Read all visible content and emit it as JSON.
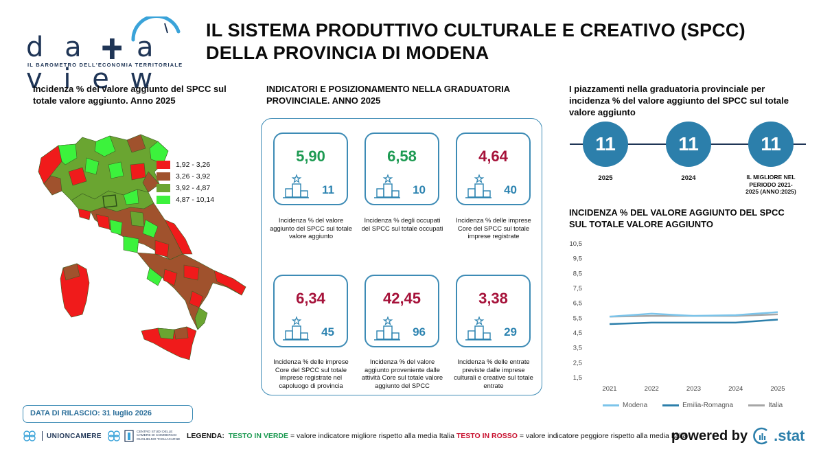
{
  "header": {
    "logo_word": "datavie w",
    "logo_tagline": "IL BAROMETRO DELL'ECONOMIA TERRITORIALE",
    "title_line1": "IL SISTEMA PRODUTTIVO CULTURALE E CREATIVO (SPCC)",
    "title_line2": "DELLA PROVINCIA DI MODENA"
  },
  "map_section": {
    "title_line1": "Incidenza % del valore aggiunto del SPCC sul",
    "title_line2": "totale valore aggiunto. Anno 2025",
    "legend": [
      {
        "label": "1,92 - 3,26",
        "color": "#f01b1b"
      },
      {
        "label": "3,26 - 3,92",
        "color": "#a0522d"
      },
      {
        "label": "3,92 - 4,87",
        "color": "#6aa531"
      },
      {
        "label": "4,87 - 10,14",
        "color": "#3cf23c"
      }
    ]
  },
  "indicators": {
    "title_line1": "INDICATORI E POSIZIONAMENTO NELLA GRADUATORIA",
    "title_line2": "PROVINCIALE. ANNO 2025",
    "cards": [
      {
        "value": "5,90",
        "rank": "11",
        "status": "green",
        "desc": "Incidenza % del valore aggiunto del SPCC sul totale valore aggiunto"
      },
      {
        "value": "6,58",
        "rank": "10",
        "status": "green",
        "desc": "Incidenza % degli occupati del SPCC sul totale occupati"
      },
      {
        "value": "4,64",
        "rank": "40",
        "status": "red",
        "desc": "Incidenza % delle imprese Core del SPCC sul totale imprese registrate"
      },
      {
        "value": "6,34",
        "rank": "45",
        "status": "red",
        "desc": "Incidenza % delle imprese Core del SPCC sul totale imprese registrate nel capoluogo di provincia"
      },
      {
        "value": "42,45",
        "rank": "96",
        "status": "red",
        "desc": "Incidenza % del valore aggiunto proveniente dalle attività Core sul totale valore aggiunto del SPCC"
      },
      {
        "value": "3,38",
        "rank": "29",
        "status": "red",
        "desc": "Incidenza % delle entrate previste dalle imprese culturali e creative sul totale entrate"
      }
    ]
  },
  "placements": {
    "title_line1": "I piazzamenti nella graduatoria provinciale per",
    "title_line2": "incidenza % del valore aggiunto del SPCC sul totale",
    "title_line3": "valore aggiunto",
    "items": [
      {
        "rank": "11",
        "label": "2025"
      },
      {
        "rank": "11",
        "label": "2024"
      },
      {
        "rank": "11",
        "label": "IL MIGLIORE NEL PERIODO 2021-2025 (ANNO:2025)"
      }
    ]
  },
  "chart_data": {
    "type": "line",
    "title": "INCIDENZA % DEL VALORE AGGIUNTO DEL SPCC SUL TOTALE VALORE AGGIUNTO",
    "x": [
      "2021",
      "2022",
      "2023",
      "2024",
      "2025"
    ],
    "ylim": [
      1.5,
      10.5
    ],
    "yticks": [
      "10,5",
      "9,5",
      "8,5",
      "7,5",
      "6,5",
      "5,5",
      "4,5",
      "3,5",
      "2,5",
      "1,5"
    ],
    "yticks_values": [
      10.5,
      9.5,
      8.5,
      7.5,
      6.5,
      5.5,
      4.5,
      3.5,
      2.5,
      1.5
    ],
    "series": [
      {
        "name": "Modena",
        "values": [
          5.6,
          5.8,
          5.65,
          5.7,
          5.9
        ],
        "color": "#7cc4ea"
      },
      {
        "name": "Emilia-Romagna",
        "values": [
          5.1,
          5.2,
          5.2,
          5.2,
          5.4
        ],
        "color": "#2c7fab"
      },
      {
        "name": "Italia",
        "values": [
          5.6,
          5.65,
          5.65,
          5.65,
          5.75
        ],
        "color": "#a6a6a6"
      }
    ],
    "grid": false,
    "legend": "bottom"
  },
  "footer": {
    "release": "DATA DI RILASCIO: 31 luglio 2026",
    "unioncamere": "UNIONCAMERE",
    "centro_lines": [
      "CENTRO STUDI DELLE",
      "CAMERE DI COMMERCIO",
      "GUGLIELMO TAGLIACARNE"
    ],
    "legend_label": "LEGENDA:",
    "legend_green": "TESTO IN VERDE",
    "legend_green_desc": "= valore indicatore migliore rispetto alla media Italia",
    "legend_red": "TESTO IN ROSSO",
    "legend_red_desc": "= valore indicatore peggiore rispetto alla media Italia",
    "powered": "powered by",
    "cstat": ".stat"
  }
}
